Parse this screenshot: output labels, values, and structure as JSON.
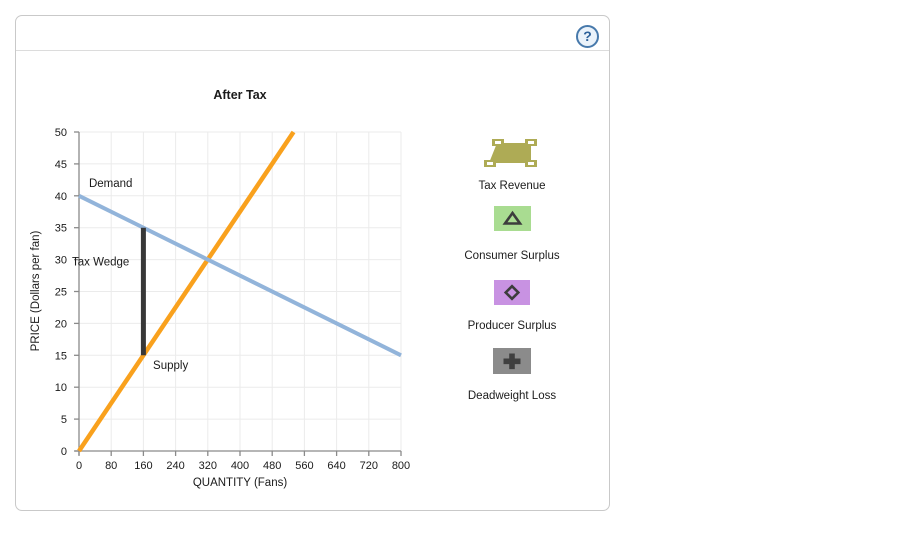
{
  "header": {
    "help_label": "?"
  },
  "chart_data": {
    "type": "line",
    "title": "After Tax",
    "xlabel": "QUANTITY (Fans)",
    "ylabel": "PRICE (Dollars per fan)",
    "xlim": [
      0,
      800
    ],
    "ylim": [
      0,
      50
    ],
    "xticks": [
      0,
      80,
      160,
      240,
      320,
      400,
      480,
      560,
      640,
      720,
      800
    ],
    "yticks": [
      0,
      5,
      10,
      15,
      20,
      25,
      30,
      35,
      40,
      45,
      50
    ],
    "grid": true,
    "legend_position": "none",
    "series": [
      {
        "name": "Supply",
        "color": "#f9a11d",
        "width": 4.5,
        "points": [
          [
            0,
            0
          ],
          [
            533,
            50
          ]
        ],
        "label_at": [
          184,
          12.85
        ]
      },
      {
        "name": "Demand",
        "color": "#92b4da",
        "width": 4,
        "points": [
          [
            0,
            40
          ],
          [
            800,
            15
          ]
        ],
        "label_at": [
          24.8,
          41.35
        ]
      },
      {
        "name": "Tax Wedge",
        "color": "#383838",
        "width": 5,
        "points": [
          [
            160,
            15
          ],
          [
            160,
            35
          ]
        ],
        "label_at": [
          -17.4,
          29.1
        ]
      }
    ],
    "annotations": {
      "equilibrium": [
        320,
        30
      ],
      "tax_per_unit": 20,
      "quantity_after_tax": 160,
      "price_buyers_pay": 35,
      "price_sellers_receive": 15
    }
  },
  "legend": {
    "items": [
      {
        "name": "Tax Revenue",
        "color": "#aeab55",
        "symbol": "selected-polygon",
        "symbol_color": "#ffffff"
      },
      {
        "name": "Consumer Surplus",
        "color": "#a9dc91",
        "symbol": "triangle",
        "symbol_color": "#3c3c3c"
      },
      {
        "name": "Producer Surplus",
        "color": "#c892e2",
        "symbol": "diamond",
        "symbol_color": "#432c50"
      },
      {
        "name": "Deadweight Loss",
        "color": "#8b8b8b",
        "symbol": "plus",
        "symbol_color": "#3f3f3f"
      }
    ]
  }
}
